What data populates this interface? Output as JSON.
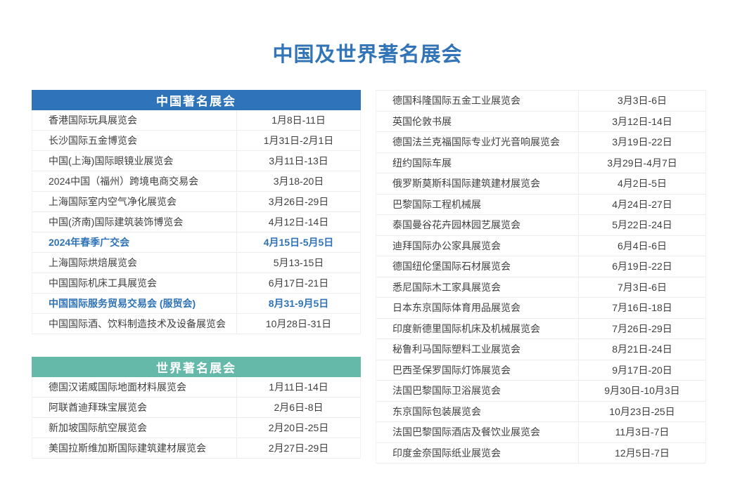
{
  "title": "中国及世界著名展会",
  "colors": {
    "title_blue": "#3274B8",
    "china_header_bg": "#2F74BA",
    "world_header_bg": "#64B9A8",
    "highlight_blue": "#2E73B8",
    "row_text": "#3f3f3f",
    "row_border": "#ececec"
  },
  "tables": {
    "china": {
      "header": "中国著名展会",
      "rows": [
        {
          "name": "香港国际玩具展览会",
          "date": "1月8日-11日"
        },
        {
          "name": "长沙国际五金博览会",
          "date": "1月31日-2月1日"
        },
        {
          "name": "中国(上海)国际眼镜业展览会",
          "date": "3月11日-13日"
        },
        {
          "name": "2024中国（福州）跨境电商交易会",
          "date": "3月18-20日"
        },
        {
          "name": "上海国际室内空气净化展览会",
          "date": "3月26日-29日"
        },
        {
          "name": "中国(济南)国际建筑装饰博览会",
          "date": "4月12日-14日"
        },
        {
          "name": "2024年春季广交会",
          "date": "4月15日-5月5日",
          "highlight": true
        },
        {
          "name": "上海国际烘焙展览会",
          "date": "5月13-15日"
        },
        {
          "name": "中国国际机床工具展览会",
          "date": "6月17日-21日"
        },
        {
          "name": "中国国际服务贸易交易会 (服贸会)",
          "date": "8月31-9月5日",
          "highlight": true
        },
        {
          "name": "中国国际酒、饮料制造技术及设备展览会",
          "date": "10月28日-31日"
        }
      ]
    },
    "world": {
      "header": "世界著名展会",
      "rows": [
        {
          "name": "德国汉诺威国际地面材料展览会",
          "date": "1月11日-14日"
        },
        {
          "name": "阿联酋迪拜珠宝展览会",
          "date": "2月6日-8日"
        },
        {
          "name": "新加坡国际航空展览会",
          "date": "2月20日-25日"
        },
        {
          "name": "美国拉斯维加斯国际建筑建材展览会",
          "date": "2月27日-29日"
        }
      ]
    },
    "world_continued": {
      "rows": [
        {
          "name": "德国科隆国际五金工业展览会",
          "date": "3月3日-6日"
        },
        {
          "name": "英国伦敦书展",
          "date": "3月12日-14日"
        },
        {
          "name": "德国法兰克福国际专业灯光音响展览会",
          "date": "3月19日-22日"
        },
        {
          "name": "纽约国际车展",
          "date": "3月29日-4月7日"
        },
        {
          "name": "俄罗斯莫斯科国际建筑建材展览会",
          "date": "4月2日-5日"
        },
        {
          "name": "巴黎国际工程机械展",
          "date": "4月24日-27日"
        },
        {
          "name": "泰国曼谷花卉园林园艺展览会",
          "date": "5月22日-24日"
        },
        {
          "name": "迪拜国际办公家具展览会",
          "date": "6月4日-6日"
        },
        {
          "name": "德国纽伦堡国际石材展览会",
          "date": "6月19日-22日"
        },
        {
          "name": "悉尼国际木工家具展览会",
          "date": "7月3日-6日"
        },
        {
          "name": "日本东京国际体育用品展览会",
          "date": "7月16日-18日"
        },
        {
          "name": "印度新德里国际机床及机械展览会",
          "date": "7月26日-29日"
        },
        {
          "name": "秘鲁利马国际塑料工业展览会",
          "date": "8月21日-24日"
        },
        {
          "name": "巴西圣保罗国际灯饰展览会",
          "date": "9月17日-20日"
        },
        {
          "name": "法国巴黎国际卫浴展览会",
          "date": "9月30日-10月3日"
        },
        {
          "name": "东京国际包装展览会",
          "date": "10月23日-25日"
        },
        {
          "name": "法国巴黎国际酒店及餐饮业展览会",
          "date": "11月3日-7日"
        },
        {
          "name": "印度金奈国际纸业展览会",
          "date": "12月5日-7日"
        }
      ]
    }
  }
}
